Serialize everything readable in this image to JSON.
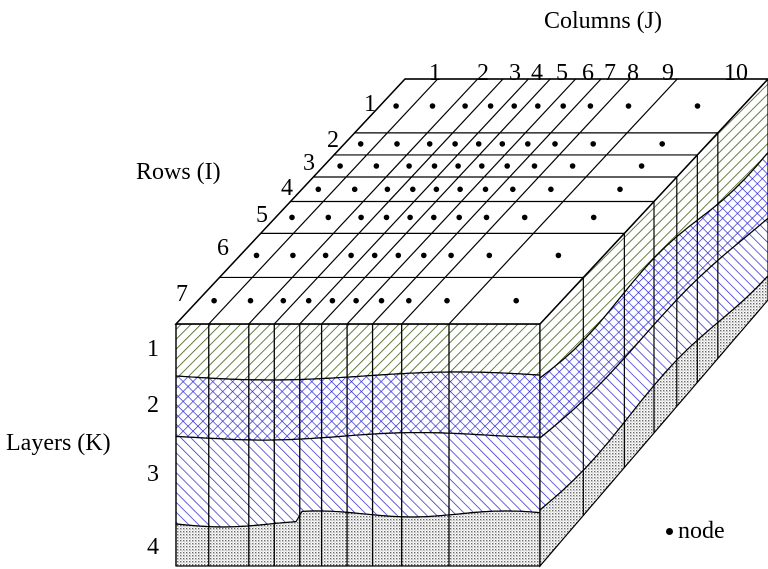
{
  "axes": {
    "columns_title": "Columns (J)",
    "rows_title": "Rows (I)",
    "layers_title": "Layers (K)"
  },
  "columns": [
    "1",
    "2",
    "3",
    "4",
    "5",
    "6",
    "7",
    "8",
    "9",
    "10"
  ],
  "rows": [
    "1",
    "2",
    "3",
    "4",
    "5",
    "6",
    "7"
  ],
  "layers": [
    "1",
    "2",
    "3",
    "4"
  ],
  "legend": {
    "label": "node"
  },
  "colors": {
    "layer1": "#3d5e14",
    "layer2": "#1f1fd6",
    "layer3": "#2323c8",
    "layer4": "#8a8a8a",
    "line": "#000000",
    "node": "#000000"
  }
}
